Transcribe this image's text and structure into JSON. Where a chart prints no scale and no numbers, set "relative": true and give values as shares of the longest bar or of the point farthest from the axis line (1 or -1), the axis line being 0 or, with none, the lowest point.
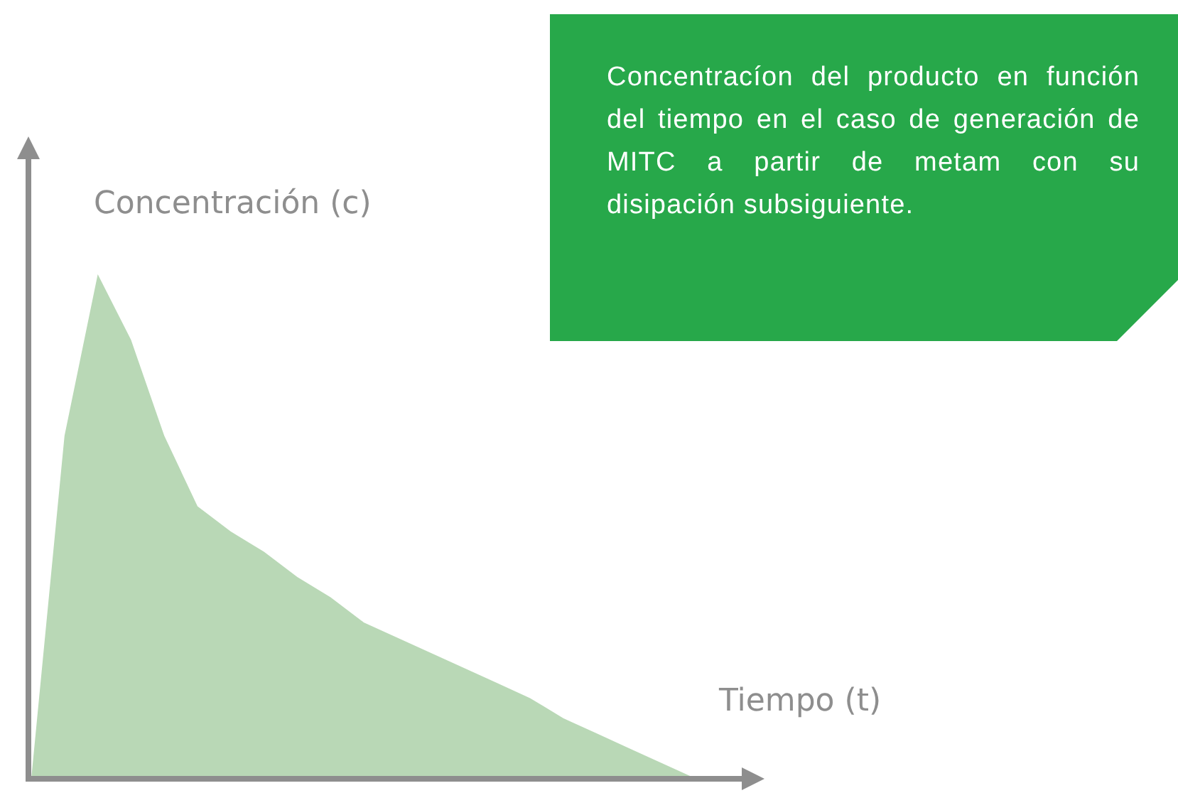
{
  "chart_data": {
    "type": "area",
    "relative": true,
    "xlabel": "Tiempo (t)",
    "ylabel": "Concentración (c)",
    "annotations": [
      "Concentracíon del producto en función del tiempo en el caso de generación de MITC a partir de metam con su disipación subsiguiente."
    ],
    "categories": [
      null,
      null,
      null,
      null,
      null,
      null,
      null,
      null,
      null,
      null,
      null,
      null,
      null,
      null,
      null,
      null,
      null,
      null,
      null,
      null,
      null
    ],
    "series": [
      {
        "color": "#b9d8b6",
        "values": [
          0,
          0.68,
          1,
          0.87,
          0.68,
          0.54,
          0.49,
          0.45,
          0.4,
          0.36,
          0.31,
          0.28,
          0.25,
          0.22,
          0.19,
          0.16,
          0.12,
          0.09,
          0.06,
          0.03,
          0
        ]
      }
    ]
  }
}
